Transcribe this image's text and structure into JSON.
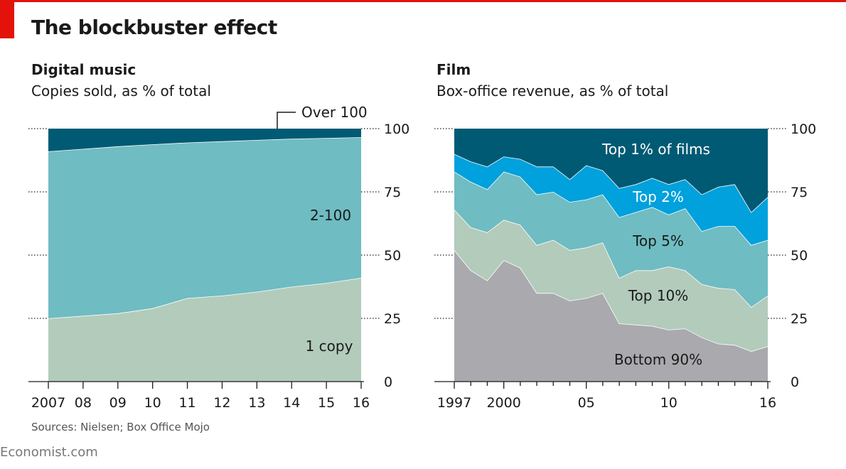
{
  "header": {
    "title": "The blockbuster effect"
  },
  "music": {
    "title": "Digital music",
    "subtitle": "Copies sold, as % of total"
  },
  "film": {
    "title": "Film",
    "subtitle": "Box-office revenue, as % of total"
  },
  "footer": {
    "source": "Sources: Nielsen; Box Office Mojo",
    "brand": "Economist.com"
  },
  "colors": {
    "accent": "#e3120b",
    "dark_teal": "#005a74",
    "bright_blue": "#00a1dc",
    "mid_teal": "#6fbcc2",
    "sage": "#b3cbbb",
    "grey": "#a9a9ae"
  },
  "chart_data": [
    {
      "type": "area",
      "stacked": true,
      "title": "Digital music",
      "subtitle": "Copies sold, as % of total",
      "x": [
        2007,
        2008,
        2009,
        2010,
        2011,
        2012,
        2013,
        2014,
        2015,
        2016
      ],
      "x_tick_labels": [
        "2007",
        "08",
        "09",
        "10",
        "11",
        "12",
        "13",
        "14",
        "15",
        "16"
      ],
      "ylim": [
        0,
        100
      ],
      "y_ticks": [
        0,
        25,
        50,
        75,
        100
      ],
      "series": [
        {
          "name": "1 copy",
          "upper": [
            25,
            26,
            27,
            29,
            33,
            34,
            35.5,
            37.5,
            39,
            41
          ]
        },
        {
          "name": "2-100",
          "upper": [
            91,
            92,
            93,
            93.8,
            94.5,
            95,
            95.5,
            96,
            96.3,
            96.6
          ]
        },
        {
          "name": "Over 100",
          "upper": [
            100,
            100,
            100,
            100,
            100,
            100,
            100,
            100,
            100,
            100
          ]
        }
      ]
    },
    {
      "type": "area",
      "stacked": true,
      "title": "Film",
      "subtitle": "Box-office revenue, as % of total",
      "x": [
        1997,
        1998,
        1999,
        2000,
        2001,
        2002,
        2003,
        2004,
        2005,
        2006,
        2007,
        2008,
        2009,
        2010,
        2011,
        2012,
        2013,
        2014,
        2015,
        2016
      ],
      "x_tick_labels": [
        "1997",
        "2000",
        "05",
        "10",
        "16"
      ],
      "x_tick_values": [
        1997,
        2000,
        2005,
        2010,
        2016
      ],
      "ylim": [
        0,
        100
      ],
      "y_ticks": [
        0,
        25,
        50,
        75,
        100
      ],
      "series": [
        {
          "name": "Bottom 90%",
          "upper": [
            52,
            44,
            40,
            48,
            45,
            35,
            35,
            32,
            33,
            35,
            23,
            22.5,
            22,
            20.5,
            21,
            17.5,
            15,
            14.5,
            12,
            14
          ]
        },
        {
          "name": "Top 10%",
          "upper": [
            68,
            61,
            59,
            64,
            62,
            54,
            56,
            52,
            53,
            55,
            41,
            44,
            44,
            45.5,
            44,
            38.5,
            37,
            36.5,
            29.5,
            34
          ]
        },
        {
          "name": "Top 5%",
          "upper": [
            83,
            79,
            76,
            83,
            81,
            74,
            75,
            71,
            72,
            74,
            65,
            67,
            69,
            66,
            68.5,
            59.5,
            61.5,
            61.5,
            54,
            56
          ]
        },
        {
          "name": "Top 2%",
          "upper": [
            90,
            87,
            85,
            89,
            88,
            85,
            85,
            80,
            85.5,
            83.5,
            76.5,
            78,
            80.5,
            78,
            80,
            74,
            77,
            78,
            67,
            73
          ]
        },
        {
          "name": "Top 1% of films",
          "upper": [
            100,
            100,
            100,
            100,
            100,
            100,
            100,
            100,
            100,
            100,
            100,
            100,
            100,
            100,
            100,
            100,
            100,
            100,
            100,
            100
          ]
        }
      ]
    }
  ]
}
